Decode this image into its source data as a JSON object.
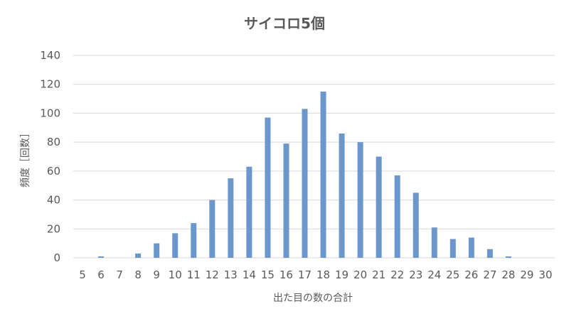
{
  "chart_data": {
    "type": "bar",
    "title": "サイコロ5個",
    "xlabel": "出た目の数の合計",
    "ylabel": "頻度［回数］",
    "categories": [
      "5",
      "6",
      "7",
      "8",
      "9",
      "10",
      "11",
      "12",
      "13",
      "14",
      "15",
      "16",
      "17",
      "18",
      "19",
      "20",
      "21",
      "22",
      "23",
      "24",
      "25",
      "26",
      "27",
      "28",
      "29",
      "30"
    ],
    "values": [
      0,
      1,
      0,
      3,
      10,
      17,
      24,
      40,
      55,
      63,
      97,
      79,
      103,
      115,
      86,
      80,
      70,
      57,
      45,
      21,
      13,
      14,
      6,
      1,
      0,
      0
    ],
    "ylim": [
      0,
      140
    ],
    "yticks": [
      0,
      20,
      40,
      60,
      80,
      100,
      120,
      140
    ],
    "grid": true,
    "legend": "none",
    "bar_color": "#6b97cc",
    "grid_color": "#d9d9d9",
    "text_color": "#595959"
  }
}
